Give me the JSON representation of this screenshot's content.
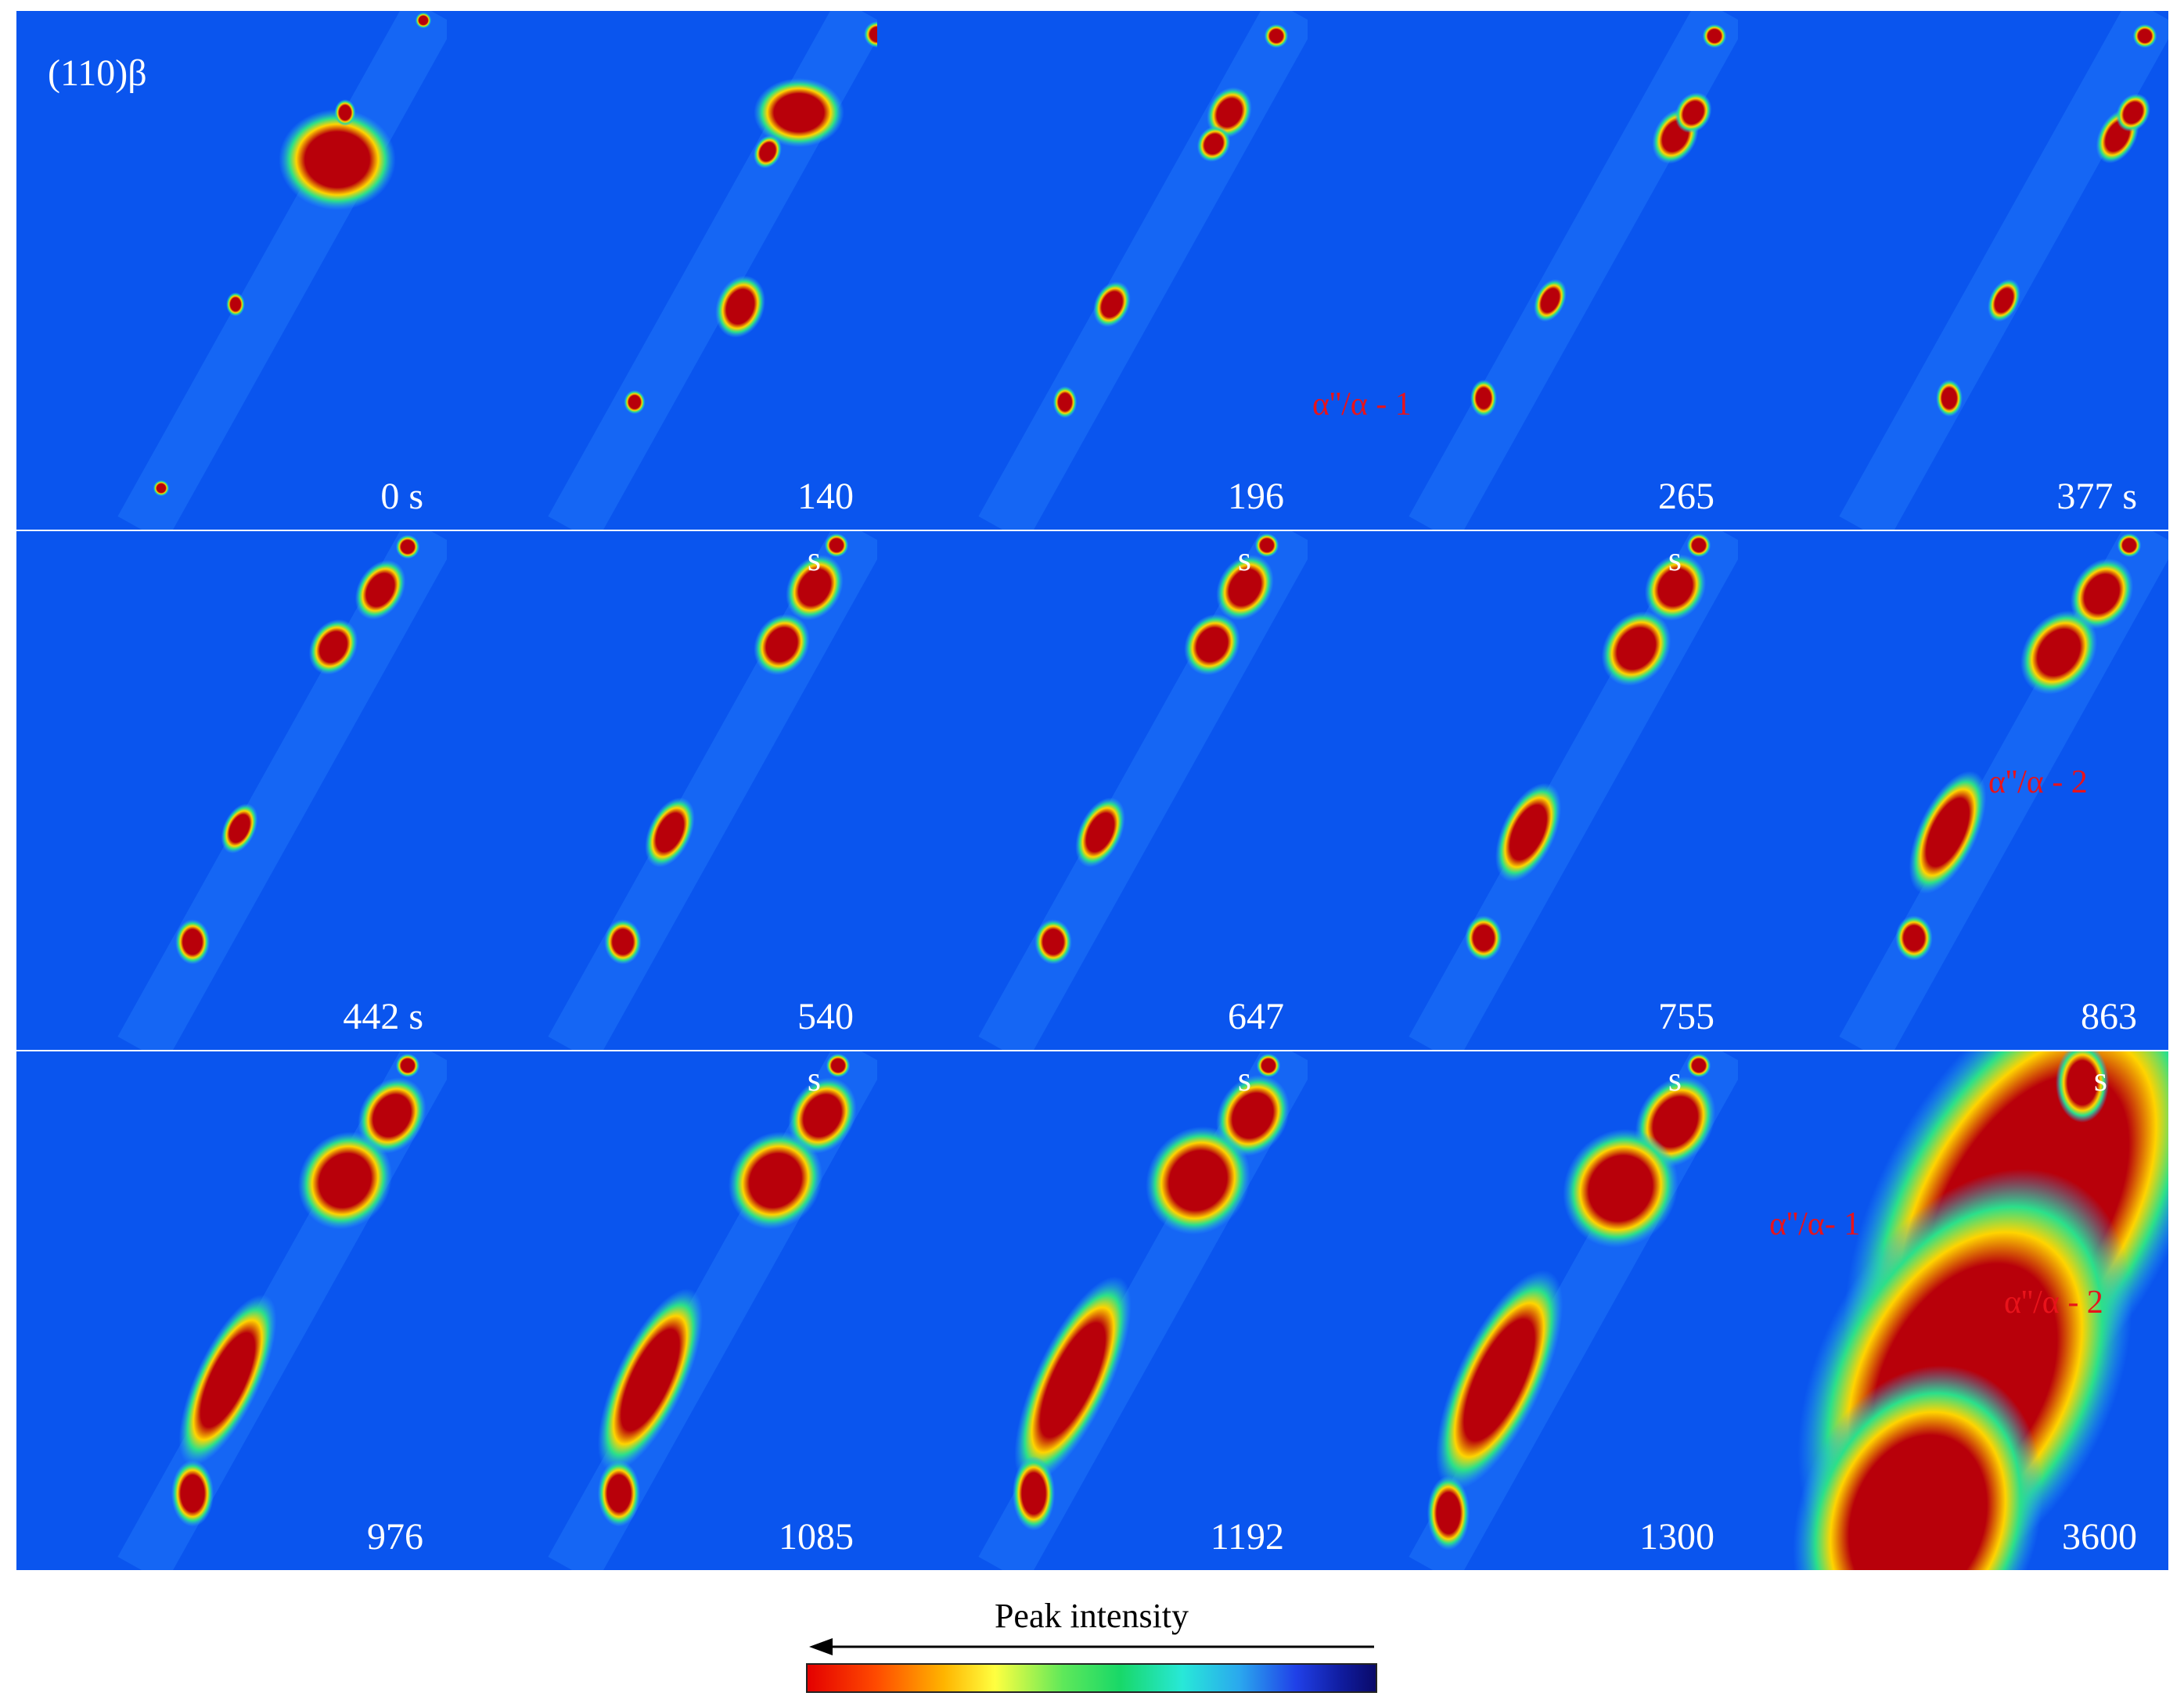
{
  "figure": {
    "plane_label": "(110)β",
    "panels": [
      {
        "time": "0 s",
        "s_label": ""
      },
      {
        "time": "140",
        "s_label": ""
      },
      {
        "time": "196",
        "s_label": ""
      },
      {
        "time": "265",
        "s_label": ""
      },
      {
        "time": "377 s",
        "s_label": ""
      },
      {
        "time": "442 s",
        "s_label": ""
      },
      {
        "time": "540",
        "s_label": "s"
      },
      {
        "time": "647",
        "s_label": "s"
      },
      {
        "time": "755",
        "s_label": "s"
      },
      {
        "time": "863",
        "s_label": ""
      },
      {
        "time": "976",
        "s_label": ""
      },
      {
        "time": "1085",
        "s_label": "s"
      },
      {
        "time": "1192",
        "s_label": "s"
      },
      {
        "time": "1300",
        "s_label": "s"
      },
      {
        "time": "3600",
        "s_label": "s"
      }
    ],
    "annotations": {
      "phase_1_p4": "α''/α - 1",
      "phase_2_p10": "α''/α - 2",
      "phase_1_p15": "α''/α- 1",
      "phase_2_p15": "α''/α - 2"
    },
    "colorbar": {
      "title": "Peak intensity",
      "colors": [
        "#e40000",
        "#ffb400",
        "#ffff40",
        "#18d868",
        "#28e8d8",
        "#2040e8",
        "#0a0a6a"
      ]
    }
  }
}
